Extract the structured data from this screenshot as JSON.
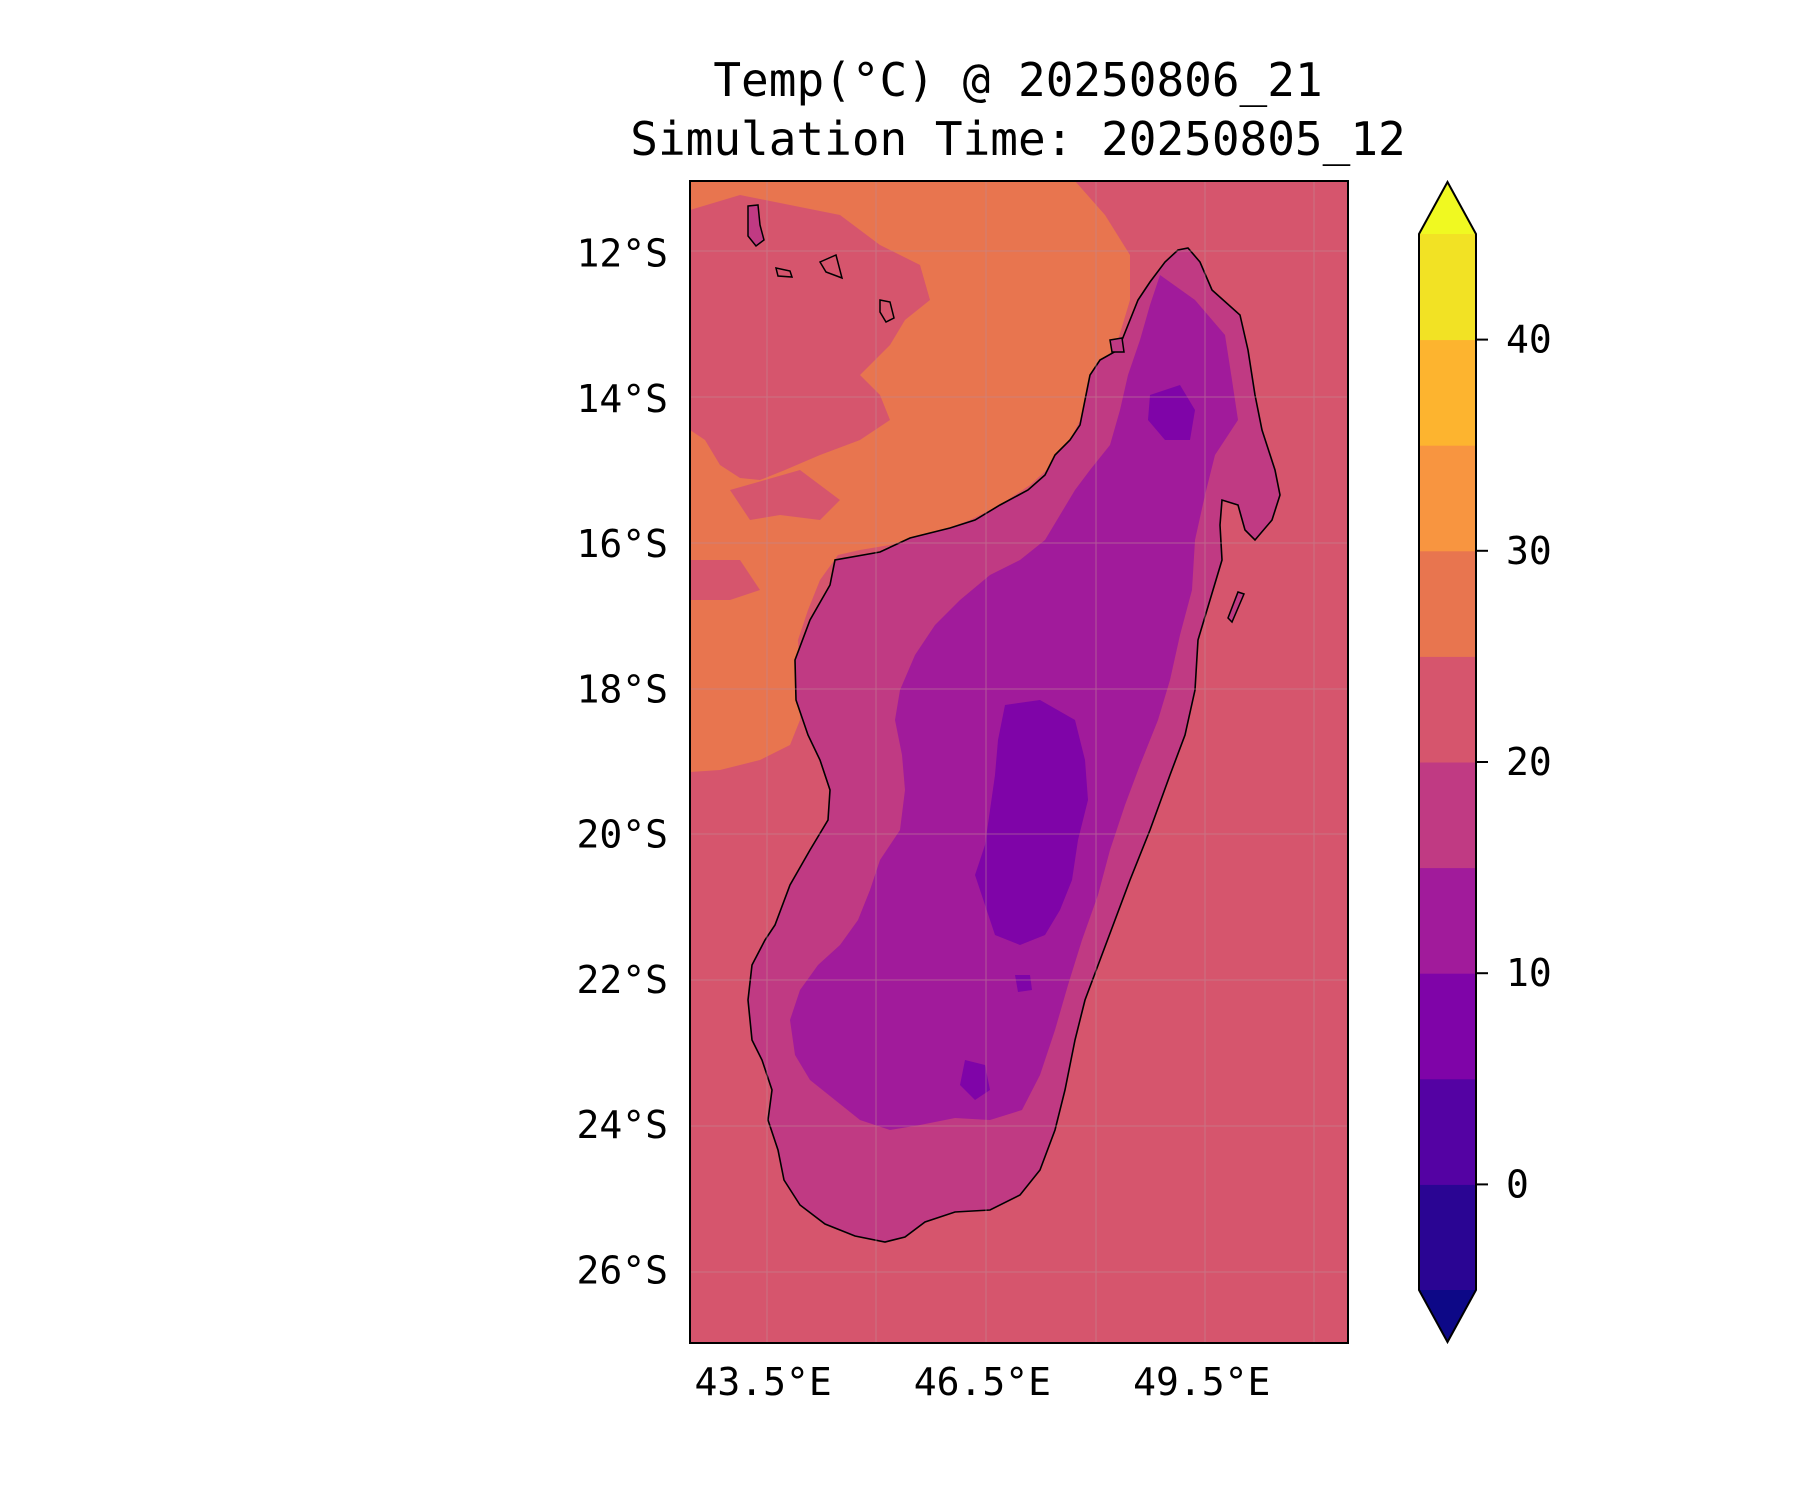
{
  "title": {
    "line1": "Temp(°C) @ 20250806_21",
    "line2": "Simulation Time: 20250805_12"
  },
  "map": {
    "region": "Madagascar",
    "variable": "Temp(°C)",
    "lon_range": [
      42.5,
      51.5
    ],
    "lat_range": [
      -27,
      -11
    ],
    "lon_ticks": [
      {
        "value": 43.5,
        "label": "43.5°E"
      },
      {
        "value": 46.5,
        "label": "46.5°E"
      },
      {
        "value": 49.5,
        "label": "49.5°E"
      }
    ],
    "lat_ticks": [
      {
        "value": -12,
        "label": "12°S"
      },
      {
        "value": -14,
        "label": "14°S"
      },
      {
        "value": -16,
        "label": "16°S"
      },
      {
        "value": -18,
        "label": "18°S"
      },
      {
        "value": -20,
        "label": "20°S"
      },
      {
        "value": -22,
        "label": "22°S"
      },
      {
        "value": -24,
        "label": "24°S"
      },
      {
        "value": -26,
        "label": "26°S"
      }
    ],
    "gridlines": true,
    "fill_levels": [
      {
        "range": [
          20,
          25
        ],
        "color": "#d6556d",
        "area": "ocean background"
      },
      {
        "range": [
          25,
          30
        ],
        "color": "#e8754f",
        "area": "northwest channel waters"
      },
      {
        "range": [
          15,
          20
        ],
        "color": "#c03a83",
        "area": "coastal lowlands"
      },
      {
        "range": [
          10,
          15
        ],
        "color": "#a11b9b",
        "area": "highlands"
      },
      {
        "range": [
          5,
          10
        ],
        "color": "#7f04a8",
        "area": "central plateau"
      }
    ]
  },
  "colorbar": {
    "label_ticks": [
      {
        "value": 0,
        "label": "0"
      },
      {
        "value": 10,
        "label": "10"
      },
      {
        "value": 20,
        "label": "20"
      },
      {
        "value": 30,
        "label": "30"
      },
      {
        "value": 40,
        "label": "40"
      }
    ],
    "range": [
      -5,
      45
    ],
    "extend": "both",
    "bins": [
      {
        "from": -5,
        "to": 0,
        "color": "#2a0593"
      },
      {
        "from": 0,
        "to": 5,
        "color": "#5402a3"
      },
      {
        "from": 5,
        "to": 10,
        "color": "#7f04a8"
      },
      {
        "from": 10,
        "to": 15,
        "color": "#a11b9b"
      },
      {
        "from": 15,
        "to": 20,
        "color": "#c03a83"
      },
      {
        "from": 20,
        "to": 25,
        "color": "#d6556d"
      },
      {
        "from": 25,
        "to": 30,
        "color": "#e8754f"
      },
      {
        "from": 30,
        "to": 35,
        "color": "#f89540"
      },
      {
        "from": 35,
        "to": 40,
        "color": "#fdb42f"
      },
      {
        "from": 40,
        "to": 45,
        "color": "#f2e224"
      }
    ],
    "under_color": "#0d0887",
    "over_color": "#f0f921"
  }
}
